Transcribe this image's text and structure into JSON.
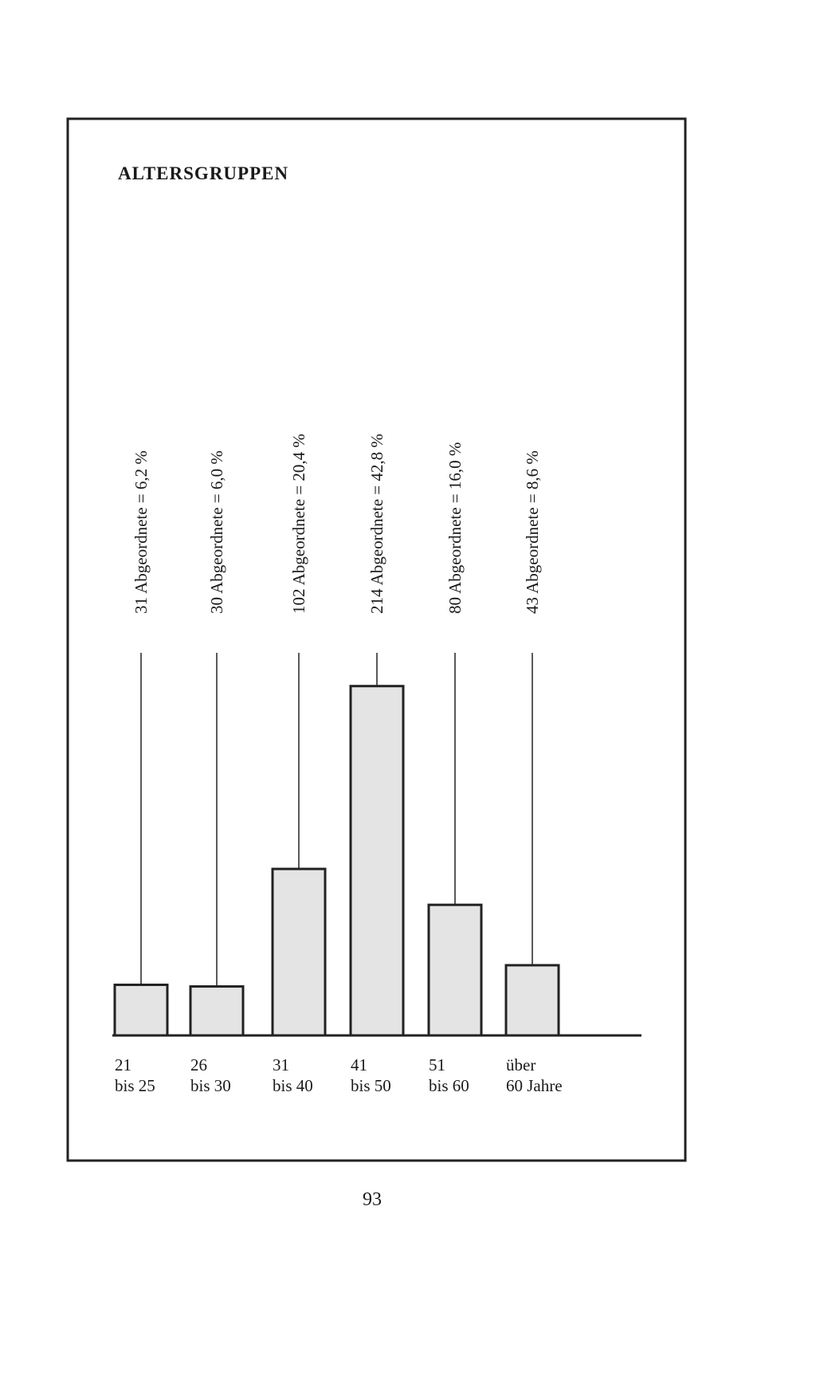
{
  "chart_data": {
    "type": "bar",
    "title": "ALTERSGRUPPEN",
    "categories": [
      [
        "21",
        "bis 25"
      ],
      [
        "26",
        "bis 30"
      ],
      [
        "31",
        "bis 40"
      ],
      [
        "41",
        "bis 50"
      ],
      [
        "51",
        "bis 60"
      ],
      [
        "über",
        "60 Jahre"
      ]
    ],
    "values": [
      6.2,
      6.0,
      20.4,
      42.8,
      16.0,
      8.6
    ],
    "value_labels": [
      "31 Abgeordnete = 6,2 %",
      "30 Abgeordnete = 6,0 %",
      "102 Abgeordnete = 20,4 %",
      "214 Abgeordnete = 42,8 %",
      "80 Abgeordnete = 16,0 %",
      "43 Abgeordnete = 8,6 %"
    ],
    "color": "#e4e4e4"
  },
  "page_number": "93"
}
